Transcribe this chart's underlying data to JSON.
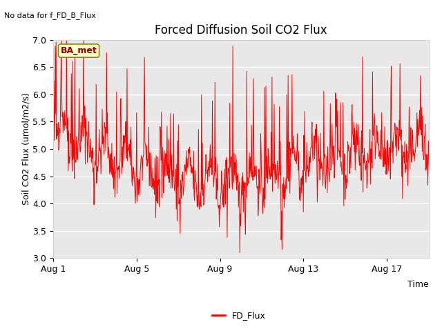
{
  "title": "Forced Diffusion Soil CO2 Flux",
  "xlabel": "Time",
  "ylabel": "Soil CO2 Flux (umol/m2/s)",
  "no_data_text": "No data for f_FD_B_Flux",
  "legend_label": "FD_Flux",
  "ba_met_label": "BA_met",
  "line_color": "red",
  "background_color": "#e8e8e8",
  "ylim": [
    3.0,
    7.0
  ],
  "yticks": [
    3.0,
    3.5,
    4.0,
    4.5,
    5.0,
    5.5,
    6.0,
    6.5,
    7.0
  ],
  "xtick_labels": [
    "Aug 1",
    "Aug 5",
    "Aug 9",
    "Aug 13",
    "Aug 17"
  ],
  "xtick_positions": [
    0,
    4,
    8,
    12,
    16
  ],
  "num_days": 19,
  "seed": 42,
  "title_fontsize": 12,
  "label_fontsize": 9,
  "tick_fontsize": 9,
  "no_data_fontsize": 8,
  "ba_met_fontsize": 9,
  "legend_fontsize": 9
}
